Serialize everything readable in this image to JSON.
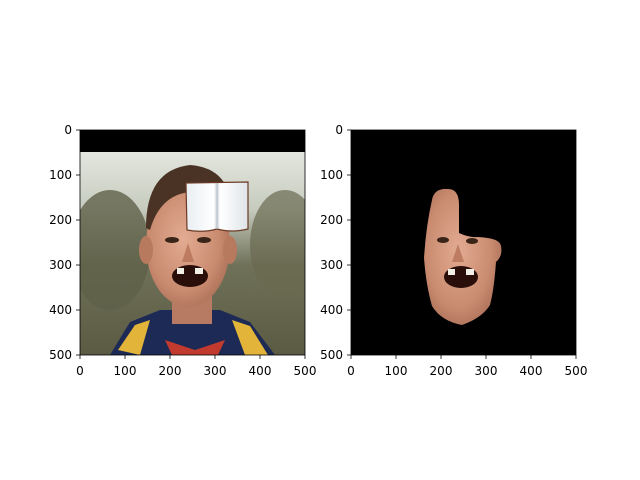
{
  "figure": {
    "background": "#ffffff",
    "panels": [
      {
        "name": "left-panel",
        "content": "original-photo",
        "description_colors": {
          "top_band": "#000000",
          "sky": "#e8ebe4",
          "shirt": "#1d2a55",
          "skin": "#c88a70"
        },
        "xticks": [
          "0",
          "100",
          "200",
          "300",
          "400",
          "500"
        ],
        "yticks": [
          "0",
          "100",
          "200",
          "300",
          "400",
          "500"
        ]
      },
      {
        "name": "right-panel",
        "content": "segmented-face-mask",
        "description_colors": {
          "background": "#000000",
          "skin": "#c88a70"
        },
        "xticks": [
          "0",
          "100",
          "200",
          "300",
          "400",
          "500"
        ],
        "yticks": [
          "0",
          "100",
          "200",
          "300",
          "400",
          "500"
        ]
      }
    ]
  }
}
